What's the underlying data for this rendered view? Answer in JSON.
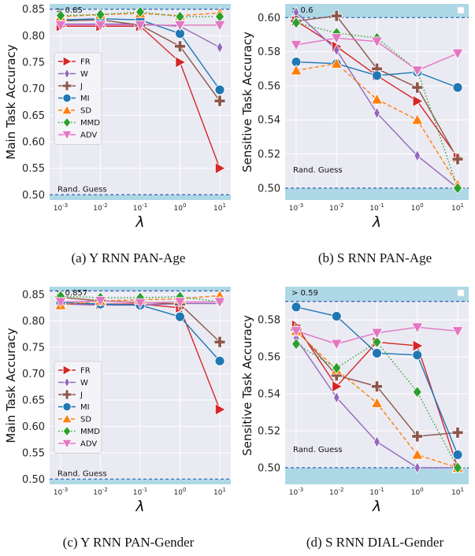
{
  "chart_data": [
    {
      "type": "line",
      "caption": "(a) Y RNN PAN-Age",
      "xlabel": "λ",
      "ylabel": "Main Task Accuracy",
      "x": [
        "10^-3",
        "10^-2",
        "10^-1",
        "10^0",
        "10^1"
      ],
      "x_scale": "log",
      "ylim": [
        0.49,
        0.86
      ],
      "yticks": [
        0.5,
        0.55,
        0.6,
        0.65,
        0.7,
        0.75,
        0.8,
        0.85
      ],
      "upper_band_label": "> 0.85",
      "upper_value": 0.85,
      "lower_band_label": "Rand. Guess",
      "lower_value": 0.5,
      "legend": "left",
      "series": [
        {
          "name": "FR",
          "values": [
            0.818,
            0.818,
            0.818,
            0.75,
            0.55
          ]
        },
        {
          "name": "W",
          "values": [
            0.822,
            0.822,
            0.822,
            0.818,
            0.778
          ]
        },
        {
          "name": "J",
          "values": [
            0.828,
            0.83,
            0.82,
            0.78,
            0.677
          ]
        },
        {
          "name": "MI",
          "values": [
            0.83,
            0.832,
            0.83,
            0.804,
            0.698
          ]
        },
        {
          "name": "SD",
          "values": [
            0.836,
            0.84,
            0.842,
            0.838,
            0.843
          ]
        },
        {
          "name": "MMD",
          "values": [
            0.838,
            0.84,
            0.845,
            0.836,
            0.836
          ]
        },
        {
          "name": "ADV",
          "values": [
            0.82,
            0.82,
            0.82,
            0.82,
            0.82
          ]
        }
      ]
    },
    {
      "type": "line",
      "caption": "(b) S RNN PAN-Age",
      "xlabel": "λ",
      "ylabel": "Sensitive Task Accuracy",
      "x": [
        "10^-3",
        "10^-2",
        "10^-1",
        "10^0",
        "10^1"
      ],
      "x_scale": "log",
      "ylim": [
        0.493,
        0.608
      ],
      "yticks": [
        0.5,
        0.52,
        0.54,
        0.56,
        0.58,
        0.6
      ],
      "upper_band_label": "> 0.6",
      "upper_value": 0.6,
      "lower_band_label": "Rand. Guess",
      "lower_value": 0.5,
      "series": [
        {
          "name": "FR",
          "values": [
            0.598,
            0.583,
            0.566,
            0.551,
            0.518
          ]
        },
        {
          "name": "W",
          "values": [
            0.603,
            0.581,
            0.544,
            0.519,
            0.5
          ]
        },
        {
          "name": "J",
          "values": [
            0.598,
            0.601,
            0.57,
            0.559,
            0.517
          ]
        },
        {
          "name": "MI",
          "values": [
            0.574,
            0.573,
            0.566,
            0.568,
            0.559
          ]
        },
        {
          "name": "SD",
          "values": [
            0.569,
            0.573,
            0.552,
            0.54,
            0.502
          ]
        },
        {
          "name": "MMD",
          "values": [
            0.597,
            0.591,
            0.588,
            0.569,
            0.5
          ]
        },
        {
          "name": "ADV",
          "values": [
            0.584,
            0.588,
            0.586,
            0.569,
            0.579
          ]
        }
      ]
    },
    {
      "type": "line",
      "caption": "(c) Y RNN PAN-Gender",
      "xlabel": "λ",
      "ylabel": "Main Task Accuracy",
      "x": [
        "10^-3",
        "10^-2",
        "10^-1",
        "10^0",
        "10^1"
      ],
      "x_scale": "log",
      "ylim": [
        0.49,
        0.865
      ],
      "yticks": [
        0.5,
        0.55,
        0.6,
        0.65,
        0.7,
        0.75,
        0.8,
        0.85
      ],
      "upper_band_label": "> 0.857",
      "upper_value": 0.857,
      "lower_band_label": "Rand. Guess",
      "lower_value": 0.5,
      "legend": "left",
      "series": [
        {
          "name": "FR",
          "values": [
            0.832,
            0.832,
            0.832,
            0.825,
            0.632
          ]
        },
        {
          "name": "W",
          "values": [
            0.832,
            0.83,
            0.83,
            0.833,
            0.833
          ]
        },
        {
          "name": "J",
          "values": [
            0.845,
            0.838,
            0.835,
            0.832,
            0.76
          ]
        },
        {
          "name": "MI",
          "values": [
            0.835,
            0.832,
            0.83,
            0.808,
            0.724
          ]
        },
        {
          "name": "SD",
          "values": [
            0.83,
            0.838,
            0.84,
            0.842,
            0.848
          ]
        },
        {
          "name": "MMD",
          "values": [
            0.847,
            0.844,
            0.844,
            0.846,
            0.836
          ]
        },
        {
          "name": "ADV",
          "values": [
            0.836,
            0.838,
            0.834,
            0.836,
            0.836
          ]
        }
      ]
    },
    {
      "type": "line",
      "caption": "(d) S RNN DIAL-Gender",
      "xlabel": "λ",
      "ylabel": "Sensitive Task Accuracy",
      "x": [
        "10^-3",
        "10^-2",
        "10^-1",
        "10^0",
        "10^1"
      ],
      "x_scale": "log",
      "ylim": [
        0.491,
        0.598
      ],
      "yticks": [
        0.5,
        0.52,
        0.54,
        0.56,
        0.58,
        0.6
      ],
      "upper_band_label": "> 0.59",
      "upper_value": 0.59,
      "lower_band_label": "Rand. Guess",
      "lower_value": 0.5,
      "series": [
        {
          "name": "FR",
          "values": [
            0.577,
            0.544,
            0.568,
            0.566,
            0.5
          ]
        },
        {
          "name": "W",
          "values": [
            0.57,
            0.538,
            0.514,
            0.5,
            0.5
          ]
        },
        {
          "name": "J",
          "values": [
            0.575,
            0.55,
            0.544,
            0.517,
            0.519
          ]
        },
        {
          "name": "MI",
          "values": [
            0.587,
            0.582,
            0.562,
            0.561,
            0.507
          ]
        },
        {
          "name": "SD",
          "values": [
            0.574,
            0.553,
            0.535,
            0.507,
            0.5
          ]
        },
        {
          "name": "MMD",
          "values": [
            0.567,
            0.554,
            0.568,
            0.541,
            0.5
          ]
        },
        {
          "name": "ADV",
          "values": [
            0.574,
            0.567,
            0.573,
            0.576,
            0.574
          ]
        }
      ]
    }
  ],
  "series_styles": {
    "FR": {
      "color": "#d62728",
      "marker": "triangle-right",
      "dash": "solid"
    },
    "W": {
      "color": "#9467bd",
      "marker": "diamond-thin",
      "dash": "solid"
    },
    "J": {
      "color": "#8c564b",
      "marker": "plus",
      "dash": "solid"
    },
    "MI": {
      "color": "#1f77b4",
      "marker": "circle",
      "dash": "solid"
    },
    "SD": {
      "color": "#ff7f0e",
      "marker": "triangle-up",
      "dash": "dashed"
    },
    "MMD": {
      "color": "#2ca02c",
      "marker": "diamond",
      "dash": "dotted"
    },
    "ADV": {
      "color": "#e377c2",
      "marker": "triangle-down",
      "dash": "solid"
    }
  },
  "colors": {
    "band": "#aed8e6",
    "band_line": "#3060b0",
    "panel_bg": "#eaeaf2",
    "grid": "#ffffff"
  }
}
